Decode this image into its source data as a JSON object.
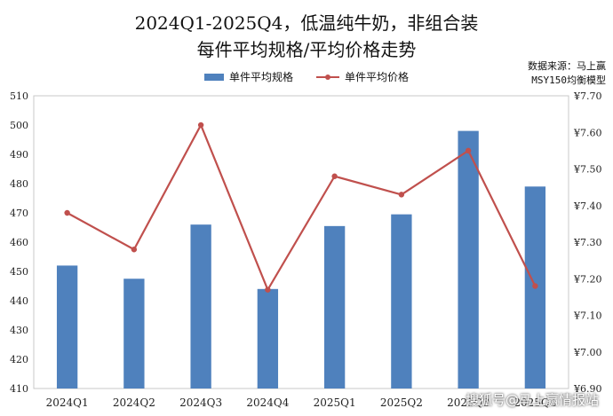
{
  "title_line1": "2024Q1-2025Q4，低温纯牛奶，非组合装",
  "title_line2": "每件平均规格/平均价格走势",
  "source_line1": "数据来源：马上赢",
  "source_line2": "MSY150均衡模型",
  "watermark": "搜狐号@马上赢情报站",
  "colors": {
    "bar": "#4f81bd",
    "line": "#c0504d"
  },
  "chart_data": {
    "type": "bar",
    "categories": [
      "2024Q1",
      "2024Q2",
      "2024Q3",
      "2024Q4",
      "2025Q1",
      "2025Q2",
      "2025Q3",
      "2025Q4"
    ],
    "series": [
      {
        "name": "单件平均规格",
        "type": "bar",
        "axis": "left",
        "values": [
          452,
          447.5,
          466,
          444,
          465.5,
          469.5,
          498,
          479
        ]
      },
      {
        "name": "单件平均价格",
        "type": "line",
        "axis": "right",
        "values": [
          7.38,
          7.28,
          7.62,
          7.17,
          7.48,
          7.43,
          7.55,
          7.18
        ]
      }
    ],
    "ylim": [
      410,
      510
    ],
    "y_ticks": [
      410,
      420,
      430,
      440,
      450,
      460,
      470,
      480,
      490,
      500,
      510
    ],
    "y2lim": [
      6.9,
      7.7
    ],
    "y2_ticks": [
      "¥6.90",
      "¥7.00",
      "¥7.10",
      "¥7.20",
      "¥7.30",
      "¥7.40",
      "¥7.50",
      "¥7.60",
      "¥7.70"
    ],
    "legend_position": "top-center",
    "grid": false
  }
}
